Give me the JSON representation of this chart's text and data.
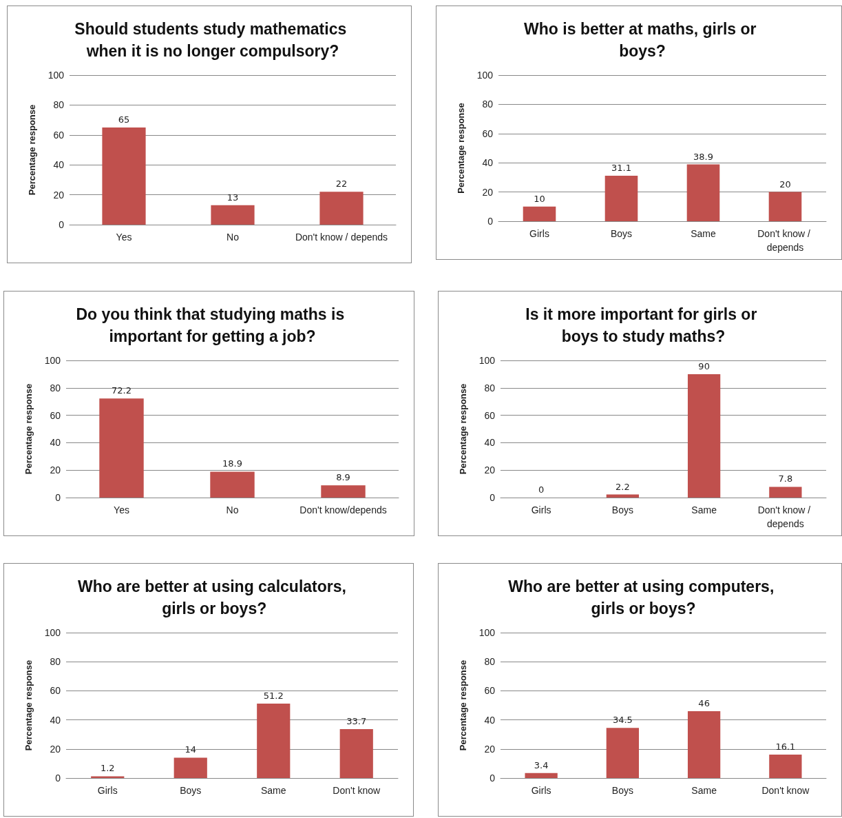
{
  "chart_data": [
    {
      "type": "bar",
      "title": "Should students study mathematics when it is no longer compulsory?",
      "ylabel": "Percentage response",
      "categories": [
        "Yes",
        "No",
        "Don't know / depends"
      ],
      "values": [
        65,
        13,
        22
      ],
      "color": "#c0504d",
      "ylim": [
        0,
        100
      ],
      "yticks": [
        0,
        20,
        40,
        60,
        80,
        100
      ],
      "grid": "y",
      "data_labels": true
    },
    {
      "type": "bar",
      "title": "Who is better at maths, girls or boys?",
      "ylabel": "Percentage response",
      "categories": [
        "Girls",
        "Boys",
        "Same",
        "Don't know / depends"
      ],
      "values": [
        10,
        31.1,
        38.9,
        20
      ],
      "color": "#c0504d",
      "ylim": [
        0,
        100
      ],
      "yticks": [
        0,
        20,
        40,
        60,
        80,
        100
      ],
      "grid": "y",
      "data_labels": true
    },
    {
      "type": "bar",
      "title": "Do you think that studying maths is important for getting a job?",
      "ylabel": "Percentage response",
      "categories": [
        "Yes",
        "No",
        "Don't know/depends"
      ],
      "values": [
        72.2,
        18.9,
        8.9
      ],
      "color": "#c0504d",
      "ylim": [
        0,
        100
      ],
      "yticks": [
        0,
        20,
        40,
        60,
        80,
        100
      ],
      "grid": "y",
      "data_labels": true
    },
    {
      "type": "bar",
      "title": "Is it more important for girls or boys to study maths?",
      "ylabel": "Percentage response",
      "categories": [
        "Girls",
        "Boys",
        "Same",
        "Don't know / depends"
      ],
      "values": [
        0,
        2.2,
        90,
        7.8
      ],
      "color": "#c0504d",
      "ylim": [
        0,
        100
      ],
      "yticks": [
        0,
        20,
        40,
        60,
        80,
        100
      ],
      "grid": "y",
      "data_labels": true
    },
    {
      "type": "bar",
      "title": "Who are better at using calculators, girls or boys?",
      "ylabel": "Percentage response",
      "categories": [
        "Girls",
        "Boys",
        "Same",
        "Don't know"
      ],
      "values": [
        1.2,
        14,
        51.2,
        33.7
      ],
      "color": "#c0504d",
      "ylim": [
        0,
        100
      ],
      "yticks": [
        0,
        20,
        40,
        60,
        80,
        100
      ],
      "grid": "y",
      "data_labels": true
    },
    {
      "type": "bar",
      "title": "Who are better at using computers, girls or boys?",
      "ylabel": "Percentage response",
      "categories": [
        "Girls",
        "Boys",
        "Same",
        "Don't know"
      ],
      "values": [
        3.4,
        34.5,
        46,
        16.1
      ],
      "color": "#c0504d",
      "ylim": [
        0,
        100
      ],
      "yticks": [
        0,
        20,
        40,
        60,
        80,
        100
      ],
      "grid": "y",
      "data_labels": true
    }
  ]
}
